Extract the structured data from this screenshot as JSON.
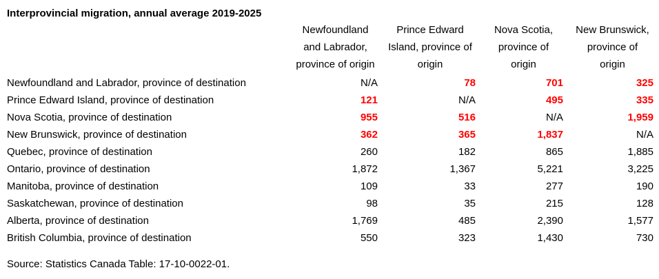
{
  "title": "Interprovincial migration, annual average 2019-2025",
  "source": "Source: Statistics Canada Table: 17-10-0022-01.",
  "colors": {
    "background": "#ffffff",
    "text": "#000000",
    "highlight_red": "#ff0000"
  },
  "table": {
    "header_labels": [
      "Newfoundland\nand Labrador,\nprovince of origin",
      "Prince Edward\nIsland, province of\norigin",
      "Nova Scotia,\nprovince of\norigin",
      "New Brunswick,\nprovince of\norigin"
    ],
    "rows": [
      {
        "label": "Newfoundland and Labrador, province of destination",
        "values": [
          "N/A",
          "78",
          "701",
          "325"
        ],
        "highlight": [
          false,
          true,
          true,
          true
        ]
      },
      {
        "label": "Prince Edward Island, province of destination",
        "values": [
          "121",
          "N/A",
          "495",
          "335"
        ],
        "highlight": [
          true,
          false,
          true,
          true
        ]
      },
      {
        "label": "Nova Scotia, province of destination",
        "values": [
          "955",
          "516",
          "N/A",
          "1,959"
        ],
        "highlight": [
          true,
          true,
          false,
          true
        ]
      },
      {
        "label": "New Brunswick, province of destination",
        "values": [
          "362",
          "365",
          "1,837",
          "N/A"
        ],
        "highlight": [
          true,
          true,
          true,
          false
        ]
      },
      {
        "label": "Quebec, province of destination",
        "values": [
          "260",
          "182",
          "865",
          "1,885"
        ],
        "highlight": [
          false,
          false,
          false,
          false
        ]
      },
      {
        "label": "Ontario, province of destination",
        "values": [
          "1,872",
          "1,367",
          "5,221",
          "3,225"
        ],
        "highlight": [
          false,
          false,
          false,
          false
        ]
      },
      {
        "label": "Manitoba, province of destination",
        "values": [
          "109",
          "33",
          "277",
          "190"
        ],
        "highlight": [
          false,
          false,
          false,
          false
        ]
      },
      {
        "label": "Saskatchewan, province of destination",
        "values": [
          "98",
          "35",
          "215",
          "128"
        ],
        "highlight": [
          false,
          false,
          false,
          false
        ]
      },
      {
        "label": "Alberta, province of destination",
        "values": [
          "1,769",
          "485",
          "2,390",
          "1,577"
        ],
        "highlight": [
          false,
          false,
          false,
          false
        ]
      },
      {
        "label": "British Columbia, province of destination",
        "values": [
          "550",
          "323",
          "1,430",
          "730"
        ],
        "highlight": [
          false,
          false,
          false,
          false
        ]
      }
    ]
  },
  "chart_data": {
    "type": "table",
    "title": "Interprovincial migration, annual average 2019-2025",
    "columns": [
      "Newfoundland and Labrador, province of origin",
      "Prince Edward Island, province of origin",
      "Nova Scotia, province of origin",
      "New Brunswick, province of origin"
    ],
    "rows": [
      "Newfoundland and Labrador, province of destination",
      "Prince Edward Island, province of destination",
      "Nova Scotia, province of destination",
      "New Brunswick, province of destination",
      "Quebec, province of destination",
      "Ontario, province of destination",
      "Manitoba, province of destination",
      "Saskatchewan, province of destination",
      "Alberta, province of destination",
      "British Columbia, province of destination"
    ],
    "values": [
      [
        "N/A",
        "78",
        "701",
        "325"
      ],
      [
        "121",
        "N/A",
        "495",
        "335"
      ],
      [
        "955",
        "516",
        "N/A",
        "1,959"
      ],
      [
        "362",
        "365",
        "1,837",
        "N/A"
      ],
      [
        "260",
        "182",
        "865",
        "1,885"
      ],
      [
        "1,872",
        "1,367",
        "5,221",
        "3,225"
      ],
      [
        "109",
        "33",
        "277",
        "190"
      ],
      [
        "98",
        "35",
        "215",
        "128"
      ],
      [
        "1,769",
        "485",
        "2,390",
        "1,577"
      ],
      [
        "550",
        "323",
        "1,430",
        "730"
      ]
    ],
    "highlighted_cells_row_col": [
      [
        0,
        1
      ],
      [
        0,
        2
      ],
      [
        0,
        3
      ],
      [
        1,
        0
      ],
      [
        1,
        2
      ],
      [
        1,
        3
      ],
      [
        2,
        0
      ],
      [
        2,
        1
      ],
      [
        2,
        3
      ],
      [
        3,
        0
      ],
      [
        3,
        1
      ],
      [
        3,
        2
      ]
    ],
    "highlight_color": "#ff0000",
    "source": "Source: Statistics Canada Table: 17-10-0022-01."
  }
}
